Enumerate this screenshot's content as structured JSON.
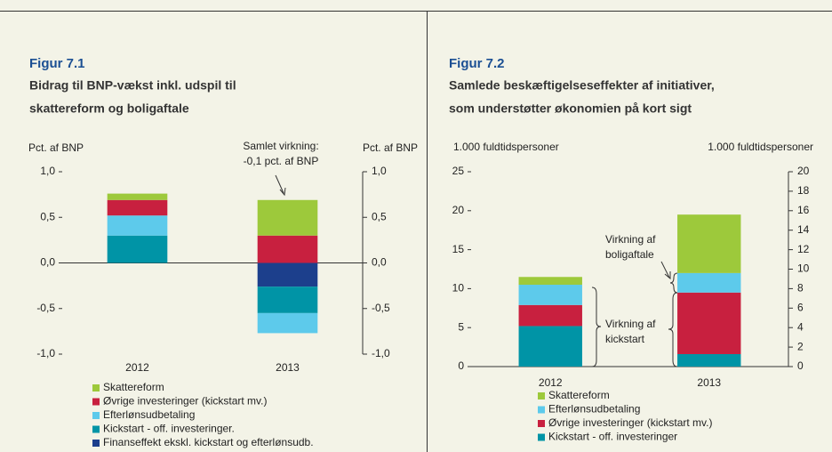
{
  "chart_data": [
    {
      "type": "bar",
      "stacked": true,
      "title": "Figur 7.1",
      "subtitle": [
        "Bidrag til BNP-vækst inkl. udspil til",
        "skattereform og boligaftale"
      ],
      "ylabel": "Pct. af BNP",
      "y2label": "Pct. af BNP",
      "annotations": [
        {
          "text": [
            "Samlet virkning:",
            "-0,1 pct. af BNP"
          ]
        }
      ],
      "categories": [
        "2012",
        "2013"
      ],
      "series": [
        {
          "name": "Finanseffekt ekskl. kickstart og efterlønsudb.",
          "color": "#1c3f8c",
          "values": [
            0,
            -0.26
          ]
        },
        {
          "name": "Kickstart - off. investeringer.",
          "color": "#0094a6",
          "values": [
            0.3,
            -0.29
          ]
        },
        {
          "name": "Efterlønsudbetaling",
          "color": "#5dcaeb",
          "values": [
            0.22,
            -0.22
          ]
        },
        {
          "name": "Øvrige investeringer (kickstart mv.)",
          "color": "#c8203f",
          "values": [
            0.17,
            0.3
          ]
        },
        {
          "name": "Skattereform",
          "color": "#9dc93b",
          "values": [
            0.07,
            0.39
          ]
        }
      ],
      "ylim": [
        -1,
        1
      ],
      "yticks": [
        {
          "value": -1,
          "label": "-1,0"
        },
        {
          "value": -0.5,
          "label": "-0,5"
        },
        {
          "value": 0,
          "label": "0,0"
        },
        {
          "value": 0.5,
          "label": "0,5"
        },
        {
          "value": 1,
          "label": "1,0"
        }
      ],
      "y2lim": [
        -1,
        1
      ],
      "y2ticks": [
        {
          "value": -1,
          "label": "-1,0"
        },
        {
          "value": -0.5,
          "label": "-0,5"
        },
        {
          "value": 0,
          "label": "0,0"
        },
        {
          "value": 0.5,
          "label": "0,5"
        },
        {
          "value": 1,
          "label": "1,0"
        }
      ]
    },
    {
      "type": "bar",
      "stacked": true,
      "title": "Figur 7.2",
      "subtitle": [
        "Samlede beskæftigelseseffekter af initiativer,",
        "som understøtter økonomien på kort sigt"
      ],
      "ylabel": "1.000 fuldtidspersoner",
      "y2label": "1.000 fuldtidspersoner",
      "annotations": [
        {
          "text": [
            "Virkning af",
            "boligaftale"
          ]
        },
        {
          "text": [
            "Virkning af",
            "kickstart"
          ]
        }
      ],
      "categories": [
        "2012",
        "2013"
      ],
      "series": [
        {
          "name": "Kickstart - off. investeringer",
          "color": "#0094a6",
          "values": [
            5.2,
            1.6
          ]
        },
        {
          "name": "Øvrige investeringer (kickstart mv.)",
          "color": "#c8203f",
          "values": [
            2.7,
            7.9
          ]
        },
        {
          "name": "Efterlønsudbetaling",
          "color": "#5dcaeb",
          "values": [
            2.6,
            2.5
          ]
        },
        {
          "name": "Skattereform",
          "color": "#9dc93b",
          "values": [
            1.0,
            7.5
          ]
        }
      ],
      "ylim": [
        0,
        25
      ],
      "yticks": [
        0,
        5,
        10,
        15,
        20,
        25
      ],
      "y2lim": [
        0,
        20
      ],
      "y2ticks": [
        0,
        2,
        4,
        6,
        8,
        10,
        12,
        14,
        16,
        18,
        20
      ]
    }
  ]
}
